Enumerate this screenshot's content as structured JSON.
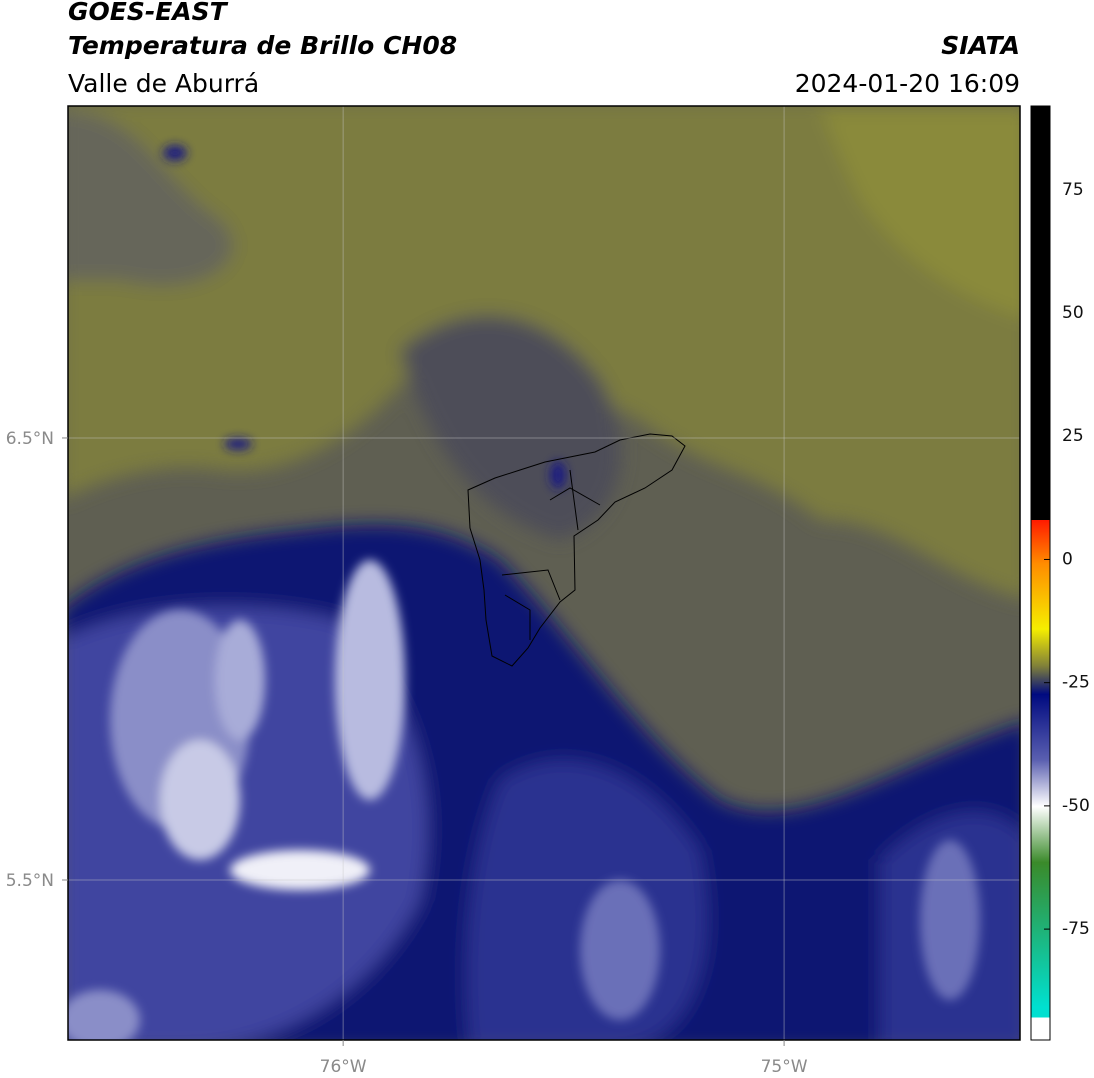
{
  "header": {
    "title": "GOES-EAST",
    "subtitle": "Temperatura de Brillo CH08",
    "region": "Valle de Aburrá",
    "source": "SIATA",
    "timestamp": "2024-01-20 16:09"
  },
  "map": {
    "lonlim": [
      -76.624,
      -74.465
    ],
    "latlim": [
      5.138,
      7.251
    ],
    "lonticks": [
      {
        "value": -76,
        "label": "76°W"
      },
      {
        "value": -75,
        "label": "75°W"
      }
    ],
    "latticks": [
      {
        "value": 6.5,
        "label": "6.5°N"
      },
      {
        "value": 5.5,
        "label": "5.5°N"
      }
    ],
    "grid": true
  },
  "colorbar": {
    "lim": [
      -97.5,
      92
    ],
    "ticks": [
      75,
      50,
      25,
      0,
      -25,
      -50,
      -75
    ]
  }
}
